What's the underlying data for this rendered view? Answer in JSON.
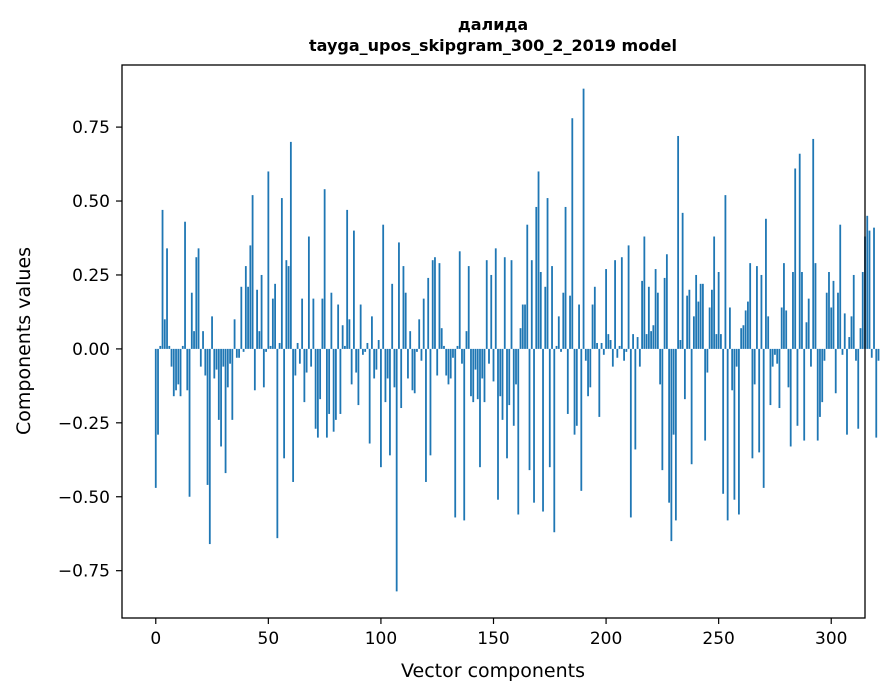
{
  "chart_data": {
    "type": "bar",
    "title": "далида",
    "subtitle": "tayga_upos_skipgram_300_2_2019 model",
    "xlabel": "Vector components",
    "ylabel": "Components values",
    "xlim": [
      -15,
      315
    ],
    "ylim": [
      -0.91,
      0.96
    ],
    "xticks": [
      0,
      50,
      100,
      150,
      200,
      250,
      300
    ],
    "yticks": [
      -0.75,
      -0.5,
      -0.25,
      0.0,
      0.25,
      0.5,
      0.75
    ],
    "ytick_labels": [
      "−0.75",
      "−0.50",
      "−0.25",
      "0.00",
      "0.25",
      "0.50",
      "0.75"
    ],
    "xtick_labels": [
      "0",
      "50",
      "100",
      "150",
      "200",
      "250",
      "300"
    ],
    "grid": false,
    "bar_color": "#1f77b4",
    "values": [
      -0.47,
      -0.29,
      0.01,
      0.47,
      0.1,
      0.34,
      0.01,
      -0.06,
      -0.16,
      -0.14,
      -0.12,
      -0.16,
      0.01,
      0.43,
      -0.14,
      -0.5,
      0.19,
      0.06,
      0.31,
      0.34,
      -0.06,
      0.06,
      -0.09,
      -0.46,
      -0.66,
      0.11,
      -0.1,
      -0.07,
      -0.24,
      -0.33,
      -0.06,
      -0.42,
      -0.13,
      -0.05,
      -0.24,
      0.1,
      -0.03,
      -0.03,
      0.21,
      -0.01,
      0.28,
      0.21,
      0.35,
      0.52,
      -0.14,
      0.2,
      0.06,
      0.25,
      -0.13,
      -0.01,
      0.6,
      0.01,
      0.17,
      0.22,
      -0.64,
      0.02,
      0.51,
      -0.37,
      0.3,
      0.28,
      0.7,
      -0.45,
      -0.09,
      0.02,
      -0.05,
      0.17,
      -0.18,
      -0.08,
      0.38,
      -0.06,
      0.17,
      -0.27,
      -0.3,
      -0.17,
      0.17,
      0.54,
      -0.3,
      -0.22,
      0.19,
      -0.28,
      -0.24,
      0.15,
      -0.22,
      0.08,
      0.01,
      0.47,
      0.1,
      -0.12,
      0.4,
      -0.08,
      -0.19,
      0.15,
      -0.02,
      -0.01,
      0.02,
      -0.32,
      0.11,
      -0.1,
      -0.07,
      0.03,
      -0.4,
      0.42,
      -0.18,
      -0.1,
      -0.36,
      0.22,
      -0.13,
      -0.82,
      0.36,
      -0.2,
      0.28,
      0.19,
      -0.1,
      0.06,
      -0.14,
      -0.15,
      -0.01,
      0.1,
      -0.04,
      0.17,
      -0.45,
      0.24,
      -0.36,
      0.3,
      0.31,
      -0.09,
      0.29,
      0.07,
      0.01,
      -0.09,
      -0.12,
      -0.1,
      -0.03,
      -0.57,
      0.01,
      0.33,
      -0.05,
      -0.58,
      0.06,
      0.28,
      -0.16,
      -0.18,
      -0.07,
      -0.17,
      -0.4,
      -0.1,
      -0.18,
      0.3,
      -0.05,
      0.25,
      -0.11,
      0.34,
      -0.51,
      -0.16,
      -0.24,
      0.31,
      -0.37,
      -0.19,
      0.3,
      -0.26,
      -0.12,
      -0.56,
      0.07,
      0.15,
      0.15,
      0.42,
      -0.41,
      0.3,
      -0.52,
      0.48,
      0.6,
      0.26,
      -0.55,
      0.21,
      0.51,
      -0.4,
      0.28,
      -0.62,
      0.01,
      0.11,
      -0.01,
      0.19,
      0.48,
      -0.22,
      0.18,
      0.78,
      -0.29,
      -0.26,
      0.15,
      -0.48,
      0.88,
      -0.04,
      -0.16,
      -0.13,
      0.15,
      0.21,
      0.02,
      -0.23,
      0.02,
      -0.02,
      0.27,
      0.05,
      0.03,
      -0.06,
      0.3,
      -0.03,
      0.01,
      0.31,
      -0.04,
      -0.01,
      0.35,
      -0.57,
      0.05,
      -0.34,
      0.04,
      -0.06,
      0.23,
      0.38,
      0.05,
      0.21,
      0.06,
      0.08,
      0.27,
      0.19,
      -0.12,
      -0.41,
      0.24,
      0.32,
      -0.52,
      -0.65,
      -0.29,
      -0.58,
      0.72,
      0.03,
      0.46,
      -0.17,
      0.18,
      0.2,
      -0.39,
      0.11,
      0.25,
      0.16,
      0.22,
      0.22,
      -0.31,
      -0.08,
      0.14,
      0.2,
      0.38,
      0.05,
      0.26,
      0.05,
      -0.49,
      0.52,
      -0.58,
      0.14,
      -0.14,
      -0.51,
      -0.06,
      -0.56,
      0.07,
      0.08,
      0.13,
      0.16,
      0.29,
      -0.37,
      -0.12,
      0.28,
      -0.35,
      0.25,
      -0.47,
      0.44,
      0.11,
      -0.19,
      -0.06,
      -0.02,
      -0.05,
      -0.2,
      0.14,
      0.29,
      0.13,
      -0.13,
      -0.33,
      0.26,
      0.61,
      -0.26,
      0.66,
      0.26,
      -0.31,
      0.09,
      0.17,
      -0.06,
      0.71,
      0.29,
      -0.31,
      -0.23,
      -0.18,
      -0.04,
      0.19,
      0.26,
      0.14,
      0.23,
      -0.15,
      0.19,
      0.42,
      -0.02,
      0.12,
      -0.29,
      0.04,
      0.11,
      0.25,
      -0.04,
      -0.27,
      0.07,
      0.26,
      0.38,
      0.45,
      0.4,
      -0.03,
      0.41,
      -0.3,
      -0.04
    ]
  }
}
